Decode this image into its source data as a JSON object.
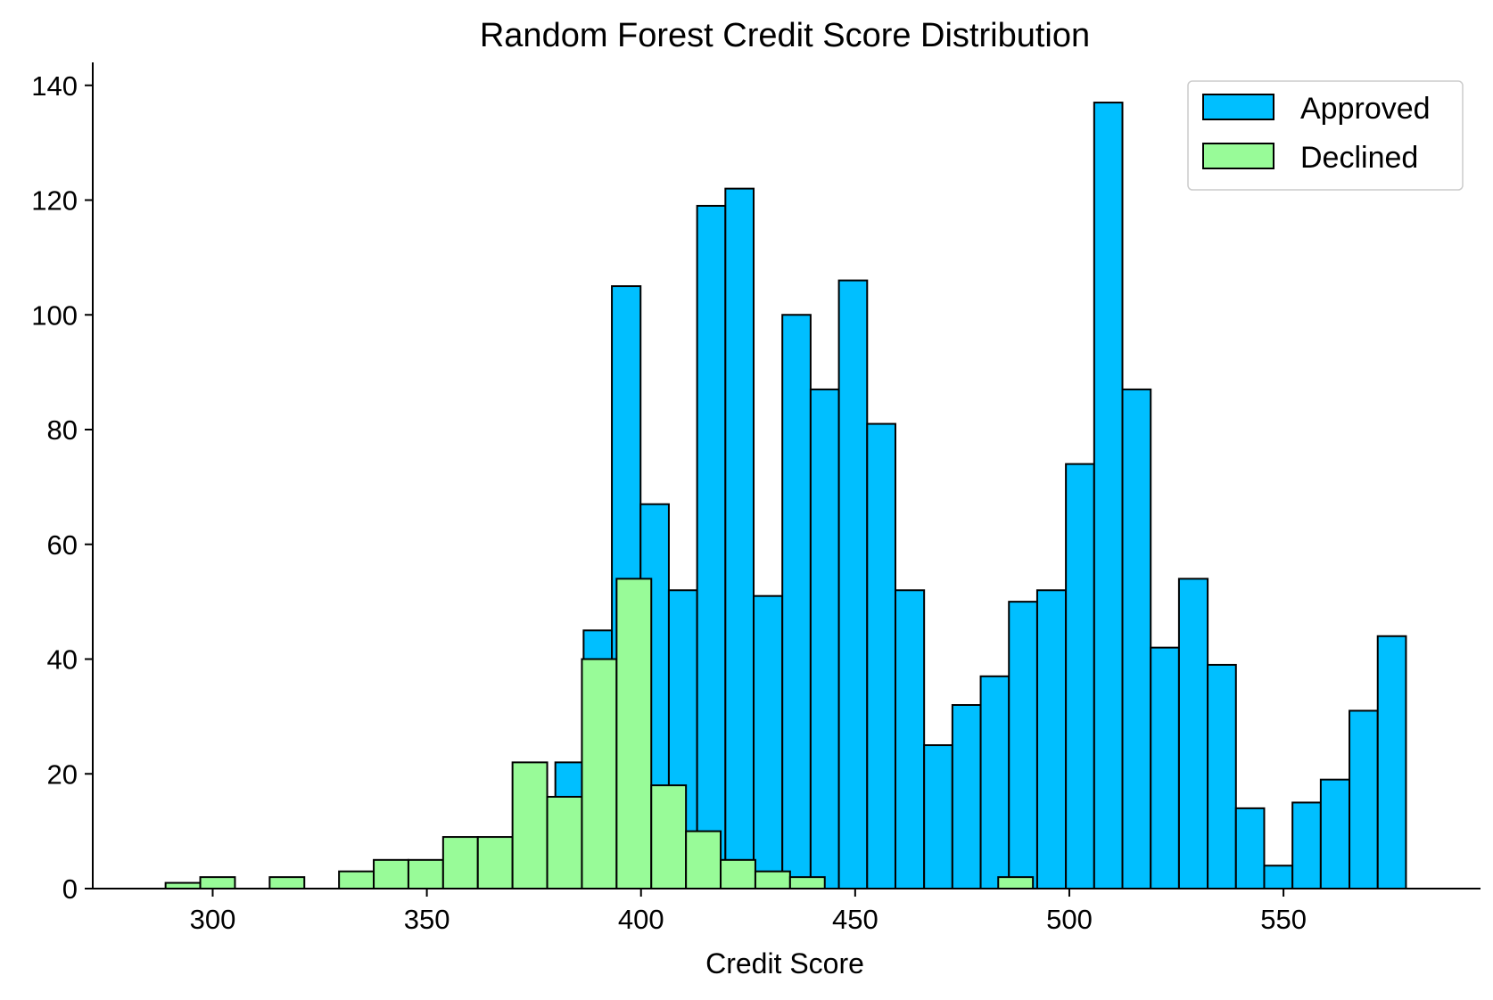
{
  "chart_data": {
    "type": "histogram",
    "title": "Random Forest Credit Score Distribution",
    "xlabel": "Credit Score",
    "ylabel": "",
    "xlim": [
      272,
      596
    ],
    "ylim": [
      0,
      144
    ],
    "xticks": [
      300,
      350,
      400,
      450,
      500,
      550
    ],
    "yticks": [
      0,
      20,
      40,
      60,
      80,
      100,
      120,
      140
    ],
    "grid": false,
    "legend_position": "top-right",
    "series": [
      {
        "name": "Approved",
        "color": "#00BFFF",
        "bins": [
          [
            380.0,
            386.6,
            22
          ],
          [
            386.6,
            393.2,
            45
          ],
          [
            393.2,
            399.9,
            105
          ],
          [
            399.9,
            406.5,
            67
          ],
          [
            406.5,
            413.1,
            52
          ],
          [
            413.1,
            419.7,
            119
          ],
          [
            419.7,
            426.3,
            122
          ],
          [
            426.3,
            433.0,
            51
          ],
          [
            433.0,
            439.6,
            100
          ],
          [
            439.6,
            446.2,
            87
          ],
          [
            446.2,
            452.8,
            106
          ],
          [
            452.8,
            459.4,
            81
          ],
          [
            459.4,
            466.1,
            52
          ],
          [
            466.1,
            472.7,
            25
          ],
          [
            472.7,
            479.3,
            32
          ],
          [
            479.3,
            485.9,
            37
          ],
          [
            485.9,
            492.5,
            50
          ],
          [
            492.5,
            499.2,
            52
          ],
          [
            499.2,
            505.8,
            74
          ],
          [
            505.8,
            512.4,
            137
          ],
          [
            512.4,
            519.0,
            87
          ],
          [
            519.0,
            525.6,
            42
          ],
          [
            525.6,
            532.3,
            54
          ],
          [
            532.3,
            538.9,
            39
          ],
          [
            538.9,
            545.5,
            14
          ],
          [
            545.5,
            552.1,
            4
          ],
          [
            552.1,
            558.7,
            15
          ],
          [
            558.7,
            565.4,
            19
          ],
          [
            565.4,
            572.0,
            31
          ],
          [
            572.0,
            578.6,
            44
          ]
        ]
      },
      {
        "name": "Declined",
        "color": "#98FB98",
        "bins": [
          [
            289.0,
            297.1,
            1
          ],
          [
            297.1,
            305.2,
            2
          ],
          [
            313.3,
            321.4,
            2
          ],
          [
            329.5,
            337.6,
            3
          ],
          [
            337.6,
            345.7,
            5
          ],
          [
            345.7,
            353.8,
            5
          ],
          [
            353.8,
            361.9,
            9
          ],
          [
            361.9,
            370.0,
            9
          ],
          [
            370.0,
            378.1,
            22
          ],
          [
            378.1,
            386.2,
            16
          ],
          [
            386.2,
            394.3,
            40
          ],
          [
            394.3,
            402.4,
            54
          ],
          [
            402.4,
            410.5,
            18
          ],
          [
            410.5,
            418.6,
            10
          ],
          [
            418.6,
            426.7,
            5
          ],
          [
            426.7,
            434.8,
            3
          ],
          [
            434.8,
            442.9,
            2
          ],
          [
            483.4,
            491.5,
            2
          ]
        ]
      }
    ]
  }
}
